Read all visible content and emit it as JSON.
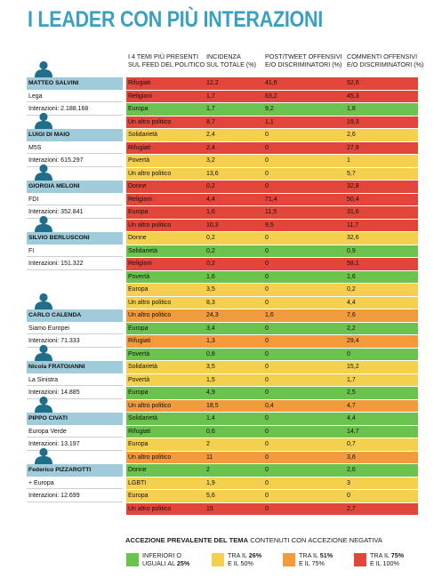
{
  "title": "I LEADER CON PIÙ INTERAZIONI",
  "colors": {
    "green": "#6cc24e",
    "yellow": "#f5d04e",
    "orange": "#f29a3e",
    "red": "#e2463b",
    "leader_band": "#9fcbda",
    "title": "#3aa0bf"
  },
  "columns": {
    "topic": [
      "I 4 TEMI PIÙ PRESENTI",
      "SUL FEED DEL POLITICO"
    ],
    "incidence": [
      "INCIDENZA",
      "SUL TOTALE (%)"
    ],
    "post": [
      "POST/TWEET OFFENSIVI",
      "E/O DISCRIMINATORI (%)"
    ],
    "comments": [
      "COMMENTI OFFENSIVI",
      "E/O DISCRIMINATORI (%)"
    ]
  },
  "chart_data": {
    "type": "table",
    "title": "I LEADER CON PIÙ INTERAZIONI",
    "leaders": [
      {
        "name": "MATTEO SALVINI",
        "party": "Lega",
        "interactions": "Interazioni: 2.188.168",
        "rows": [
          {
            "topic": "Rifugiati",
            "incidence": "12,2",
            "post": "41,6",
            "comments": "52,6",
            "color": "red"
          },
          {
            "topic": "Religioni",
            "incidence": "1,7",
            "post": "63,2",
            "comments": "45,3",
            "color": "red"
          },
          {
            "topic": "Europa",
            "incidence": "1,7",
            "post": "9,2",
            "comments": "1,8",
            "color": "green"
          },
          {
            "topic": "Un altro politico",
            "incidence": "8,7",
            "post": "1,1",
            "comments": "19,3",
            "color": "red"
          }
        ]
      },
      {
        "name": "LUIGI DI MAIO",
        "party": "M5S",
        "interactions": "Interazioni: 615.297",
        "rows": [
          {
            "topic": "Solidarietà",
            "incidence": "2,4",
            "post": "0",
            "comments": "2,6",
            "color": "yellow"
          },
          {
            "topic": "Rifugiati",
            "incidence": "2,4",
            "post": "0",
            "comments": "27,9",
            "color": "red"
          },
          {
            "topic": "Povertà",
            "incidence": "3,2",
            "post": "0",
            "comments": "1",
            "color": "yellow"
          },
          {
            "topic": "Un altro politico",
            "incidence": "13,6",
            "post": "0",
            "comments": "5,7",
            "color": "yellow"
          }
        ]
      },
      {
        "name": "GIORGIA MELONI",
        "party": "FDI",
        "interactions": "Interazioni: 352.841",
        "rows": [
          {
            "topic": "Donne",
            "incidence": "0,2",
            "post": "0",
            "comments": "32,8",
            "color": "red"
          },
          {
            "topic": "Religioni",
            "incidence": "4,4",
            "post": "71,4",
            "comments": "50,4",
            "color": "red"
          },
          {
            "topic": "Europa",
            "incidence": "1,6",
            "post": "11,5",
            "comments": "31,6",
            "color": "red"
          },
          {
            "topic": "Un altro politico",
            "incidence": "10,3",
            "post": "9,5",
            "comments": "11,7",
            "color": "red"
          }
        ]
      },
      {
        "name": "SILVIO BERLUSCONI",
        "party": "FI",
        "interactions": "Interazioni: 151.322",
        "rows": [
          {
            "topic": "Donne",
            "incidence": "0,2",
            "post": "0",
            "comments": "32,6",
            "color": "yellow"
          },
          {
            "topic": "Solidarietà",
            "incidence": "0,2",
            "post": "0",
            "comments": "0,9",
            "color": "green"
          },
          {
            "topic": "Religioni",
            "incidence": "0,2",
            "post": "0",
            "comments": "58,1",
            "color": "red"
          },
          {
            "topic": "Povertà",
            "incidence": "1,6",
            "post": "0",
            "comments": "1,6",
            "color": "green"
          },
          {
            "topic": "Europa",
            "incidence": "3,5",
            "post": "0",
            "comments": "0,2",
            "color": "yellow"
          },
          {
            "topic": "Un altro politico",
            "incidence": "8,3",
            "post": "0",
            "comments": "4,4",
            "color": "yellow"
          }
        ]
      },
      {
        "name": "CARLO CALENDA",
        "party": "Siamo Europei",
        "interactions": "Interazioni: 71.333",
        "rows": [
          {
            "topic": "Un altro politico",
            "incidence": "24,3",
            "post": "1,6",
            "comments": "7,6",
            "color": "orange"
          },
          {
            "topic": "Europa",
            "incidence": "3,4",
            "post": "0",
            "comments": "2,2",
            "color": "green"
          },
          {
            "topic": "Rifugiati",
            "incidence": "1,3",
            "post": "0",
            "comments": "29,4",
            "color": "orange"
          },
          {
            "topic": "Povertà",
            "incidence": "0,8",
            "post": "0",
            "comments": "0",
            "color": "green"
          }
        ]
      },
      {
        "name": "Nicola FRATOIANNI",
        "party": "La Sinistra",
        "interactions": "Interazioni: 14.885",
        "rows": [
          {
            "topic": "Solidarietà",
            "incidence": "3,5",
            "post": "0",
            "comments": "15,2",
            "color": "yellow"
          },
          {
            "topic": "Povertà",
            "incidence": "1,5",
            "post": "0",
            "comments": "1,7",
            "color": "yellow"
          },
          {
            "topic": "Europa",
            "incidence": "4,9",
            "post": "0",
            "comments": "2,5",
            "color": "green"
          },
          {
            "topic": "Un altro politico",
            "incidence": "18,5",
            "post": "0,4",
            "comments": "4,7",
            "color": "orange"
          }
        ]
      },
      {
        "name": "PIPPO CIVATI",
        "party": "Europa Verde",
        "interactions": "Interazioni: 13.197",
        "rows": [
          {
            "topic": "Solidarietà",
            "incidence": "1,4",
            "post": "0",
            "comments": "4,4",
            "color": "green"
          },
          {
            "topic": "Rifugiati",
            "incidence": "0,6",
            "post": "0",
            "comments": "14,7",
            "color": "green"
          },
          {
            "topic": "Europa",
            "incidence": "2",
            "post": "0",
            "comments": "0,7",
            "color": "yellow"
          },
          {
            "topic": "Un altro politico",
            "incidence": "11",
            "post": "0",
            "comments": "3,6",
            "color": "orange"
          }
        ]
      },
      {
        "name": "Federico PIZZAROTTI",
        "party": "+ Europa",
        "interactions": "Interazioni: 12.699",
        "rows": [
          {
            "topic": "Donne",
            "incidence": "2",
            "post": "0",
            "comments": "2,6",
            "color": "green"
          },
          {
            "topic": "LGBTI",
            "incidence": "1,9",
            "post": "0",
            "comments": "3",
            "color": "yellow"
          },
          {
            "topic": "Europa",
            "incidence": "5,6",
            "post": "0",
            "comments": "0",
            "color": "yellow"
          },
          {
            "topic": "Un altro politico",
            "incidence": "15",
            "post": "0",
            "comments": "2,7",
            "color": "red"
          }
        ]
      }
    ]
  },
  "legend": {
    "title_bold": "ACCEZIONE PREVALENTE DEL TEMA",
    "title_rest": "CONTENUTI CON ACCEZIONE NEGATIVA",
    "items": [
      {
        "line1": "INFERIORI O",
        "line2_pre": "UGUALI AL ",
        "line2_bold": "25%",
        "color": "green"
      },
      {
        "line1_pre": "TRA IL ",
        "line1_bold": "26%",
        "line2": "E IL 50%",
        "color": "yellow"
      },
      {
        "line1_pre": "TRA IL ",
        "line1_bold": "51%",
        "line2": "E IL 75%",
        "color": "orange"
      },
      {
        "line1_pre": "TRA IL ",
        "line1_bold": "75%",
        "line2": "E IL 100%",
        "color": "red"
      }
    ]
  }
}
